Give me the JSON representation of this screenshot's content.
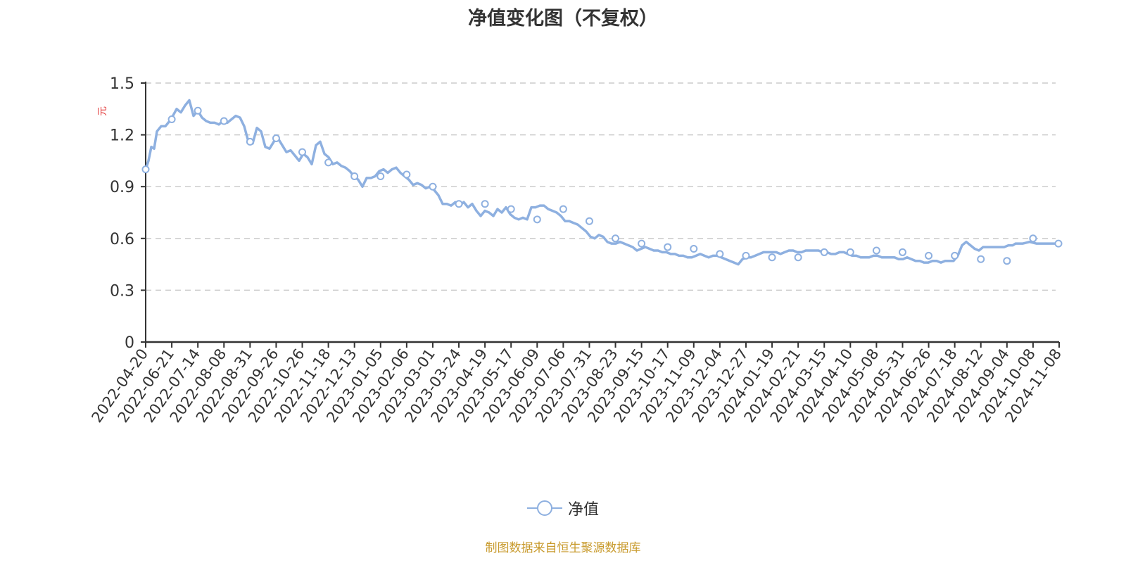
{
  "title": "净值变化图（不复权）",
  "legend": {
    "label": "净值",
    "color": "#8eb0e0"
  },
  "source": "制图数据来自恒生聚源数据库",
  "y_unit": "元",
  "chart_data": {
    "type": "line",
    "title": "净值变化图（不复权）",
    "xlabel": "",
    "ylabel": "元",
    "ylim": [
      0,
      1.5
    ],
    "yticks": [
      0,
      0.3,
      0.6,
      0.9,
      1.2,
      1.5
    ],
    "grid": true,
    "legend_position": "bottom",
    "categories": [
      "2022-04-20",
      "2022-06-21",
      "2022-07-14",
      "2022-08-08",
      "2022-08-31",
      "2022-09-26",
      "2022-10-26",
      "2022-11-18",
      "2022-12-13",
      "2023-01-05",
      "2023-02-06",
      "2023-03-01",
      "2023-03-24",
      "2023-04-19",
      "2023-05-17",
      "2023-06-09",
      "2023-07-06",
      "2023-07-31",
      "2023-08-23",
      "2023-09-15",
      "2023-10-17",
      "2023-11-09",
      "2023-12-04",
      "2023-12-27",
      "2024-01-19",
      "2024-02-21",
      "2024-03-15",
      "2024-04-10",
      "2024-05-08",
      "2024-05-31",
      "2024-06-26",
      "2024-07-18",
      "2024-08-12",
      "2024-09-04",
      "2024-10-08",
      "2024-11-08"
    ],
    "series": [
      {
        "name": "净值",
        "values": [
          1.0,
          1.29,
          1.34,
          1.28,
          1.16,
          1.18,
          1.1,
          1.04,
          0.96,
          0.96,
          0.97,
          0.9,
          0.8,
          0.8,
          0.77,
          0.71,
          0.77,
          0.7,
          0.6,
          0.57,
          0.55,
          0.54,
          0.51,
          0.5,
          0.49,
          0.49,
          0.52,
          0.52,
          0.53,
          0.52,
          0.5,
          0.5,
          0.48,
          0.47,
          0.6,
          0.57
        ]
      }
    ],
    "line_points": [
      [
        0,
        1.0
      ],
      [
        4,
        1.05
      ],
      [
        8,
        1.13
      ],
      [
        12,
        1.12
      ],
      [
        16,
        1.22
      ],
      [
        22,
        1.25
      ],
      [
        28,
        1.25
      ],
      [
        36,
        1.29
      ],
      [
        44,
        1.35
      ],
      [
        50,
        1.33
      ],
      [
        56,
        1.37
      ],
      [
        62,
        1.4
      ],
      [
        68,
        1.31
      ],
      [
        74,
        1.34
      ],
      [
        80,
        1.3
      ],
      [
        86,
        1.28
      ],
      [
        92,
        1.27
      ],
      [
        98,
        1.27
      ],
      [
        104,
        1.26
      ],
      [
        110,
        1.28
      ],
      [
        116,
        1.27
      ],
      [
        122,
        1.29
      ],
      [
        128,
        1.31
      ],
      [
        134,
        1.3
      ],
      [
        140,
        1.25
      ],
      [
        146,
        1.16
      ],
      [
        152,
        1.15
      ],
      [
        158,
        1.24
      ],
      [
        164,
        1.22
      ],
      [
        170,
        1.13
      ],
      [
        176,
        1.12
      ],
      [
        182,
        1.16
      ],
      [
        188,
        1.18
      ],
      [
        194,
        1.14
      ],
      [
        200,
        1.1
      ],
      [
        206,
        1.11
      ],
      [
        212,
        1.08
      ],
      [
        218,
        1.05
      ],
      [
        224,
        1.09
      ],
      [
        230,
        1.07
      ],
      [
        236,
        1.03
      ],
      [
        242,
        1.14
      ],
      [
        248,
        1.16
      ],
      [
        254,
        1.09
      ],
      [
        260,
        1.07
      ],
      [
        266,
        1.03
      ],
      [
        272,
        1.04
      ],
      [
        278,
        1.02
      ],
      [
        284,
        1.01
      ],
      [
        290,
        0.99
      ],
      [
        296,
        0.96
      ],
      [
        302,
        0.94
      ],
      [
        308,
        0.9
      ],
      [
        314,
        0.95
      ],
      [
        320,
        0.95
      ],
      [
        326,
        0.96
      ],
      [
        332,
        0.99
      ],
      [
        338,
        1.0
      ],
      [
        344,
        0.98
      ],
      [
        350,
        1.0
      ],
      [
        356,
        1.01
      ],
      [
        362,
        0.98
      ],
      [
        368,
        0.96
      ],
      [
        374,
        0.94
      ],
      [
        380,
        0.91
      ],
      [
        386,
        0.92
      ],
      [
        392,
        0.91
      ],
      [
        398,
        0.89
      ],
      [
        404,
        0.9
      ],
      [
        410,
        0.88
      ],
      [
        416,
        0.85
      ],
      [
        422,
        0.8
      ],
      [
        428,
        0.8
      ],
      [
        434,
        0.79
      ],
      [
        440,
        0.81
      ],
      [
        446,
        0.79
      ],
      [
        452,
        0.81
      ],
      [
        458,
        0.78
      ],
      [
        464,
        0.8
      ],
      [
        470,
        0.76
      ],
      [
        476,
        0.73
      ],
      [
        482,
        0.76
      ],
      [
        488,
        0.75
      ],
      [
        494,
        0.73
      ],
      [
        500,
        0.77
      ],
      [
        506,
        0.75
      ],
      [
        512,
        0.78
      ],
      [
        518,
        0.74
      ],
      [
        524,
        0.72
      ],
      [
        530,
        0.71
      ],
      [
        536,
        0.72
      ],
      [
        542,
        0.71
      ],
      [
        548,
        0.78
      ],
      [
        554,
        0.78
      ],
      [
        560,
        0.79
      ],
      [
        566,
        0.79
      ],
      [
        572,
        0.77
      ],
      [
        578,
        0.76
      ],
      [
        584,
        0.75
      ],
      [
        590,
        0.73
      ],
      [
        596,
        0.7
      ],
      [
        602,
        0.7
      ],
      [
        608,
        0.69
      ],
      [
        614,
        0.68
      ],
      [
        620,
        0.66
      ],
      [
        626,
        0.64
      ],
      [
        632,
        0.61
      ],
      [
        638,
        0.6
      ],
      [
        644,
        0.62
      ],
      [
        650,
        0.61
      ],
      [
        656,
        0.58
      ],
      [
        662,
        0.57
      ],
      [
        668,
        0.57
      ],
      [
        674,
        0.58
      ],
      [
        680,
        0.57
      ],
      [
        686,
        0.56
      ],
      [
        692,
        0.55
      ],
      [
        698,
        0.53
      ],
      [
        704,
        0.54
      ],
      [
        710,
        0.55
      ],
      [
        716,
        0.54
      ],
      [
        722,
        0.53
      ],
      [
        728,
        0.53
      ],
      [
        734,
        0.52
      ],
      [
        740,
        0.52
      ],
      [
        746,
        0.51
      ],
      [
        752,
        0.51
      ],
      [
        758,
        0.5
      ],
      [
        764,
        0.5
      ],
      [
        770,
        0.49
      ],
      [
        776,
        0.49
      ],
      [
        782,
        0.5
      ],
      [
        788,
        0.51
      ],
      [
        794,
        0.5
      ],
      [
        800,
        0.49
      ],
      [
        806,
        0.5
      ],
      [
        812,
        0.5
      ],
      [
        818,
        0.49
      ],
      [
        824,
        0.48
      ],
      [
        830,
        0.47
      ],
      [
        836,
        0.46
      ],
      [
        842,
        0.45
      ],
      [
        848,
        0.48
      ],
      [
        854,
        0.49
      ],
      [
        860,
        0.49
      ],
      [
        866,
        0.5
      ],
      [
        872,
        0.51
      ],
      [
        878,
        0.52
      ],
      [
        884,
        0.52
      ],
      [
        890,
        0.52
      ],
      [
        896,
        0.52
      ],
      [
        902,
        0.51
      ],
      [
        908,
        0.52
      ],
      [
        914,
        0.53
      ],
      [
        920,
        0.53
      ],
      [
        926,
        0.52
      ],
      [
        932,
        0.52
      ],
      [
        938,
        0.53
      ],
      [
        944,
        0.53
      ],
      [
        950,
        0.53
      ],
      [
        956,
        0.53
      ],
      [
        962,
        0.52
      ],
      [
        968,
        0.52
      ],
      [
        974,
        0.51
      ],
      [
        980,
        0.51
      ],
      [
        986,
        0.52
      ],
      [
        992,
        0.52
      ],
      [
        998,
        0.51
      ],
      [
        1004,
        0.5
      ],
      [
        1010,
        0.5
      ],
      [
        1016,
        0.49
      ],
      [
        1022,
        0.49
      ],
      [
        1028,
        0.49
      ],
      [
        1034,
        0.5
      ],
      [
        1040,
        0.5
      ],
      [
        1046,
        0.49
      ],
      [
        1052,
        0.49
      ],
      [
        1058,
        0.49
      ],
      [
        1064,
        0.49
      ],
      [
        1070,
        0.48
      ],
      [
        1076,
        0.48
      ],
      [
        1082,
        0.49
      ],
      [
        1088,
        0.48
      ],
      [
        1094,
        0.47
      ],
      [
        1100,
        0.47
      ],
      [
        1106,
        0.46
      ],
      [
        1112,
        0.46
      ],
      [
        1118,
        0.47
      ],
      [
        1124,
        0.47
      ],
      [
        1130,
        0.46
      ],
      [
        1136,
        0.47
      ],
      [
        1142,
        0.47
      ],
      [
        1148,
        0.47
      ],
      [
        1154,
        0.5
      ],
      [
        1160,
        0.56
      ],
      [
        1166,
        0.58
      ],
      [
        1172,
        0.56
      ],
      [
        1178,
        0.54
      ],
      [
        1184,
        0.53
      ],
      [
        1190,
        0.55
      ],
      [
        1196,
        0.55
      ],
      [
        1202,
        0.55
      ],
      [
        1208,
        0.55
      ],
      [
        1214,
        0.55
      ],
      [
        1220,
        0.55
      ],
      [
        1226,
        0.56
      ],
      [
        1232,
        0.56
      ],
      [
        1236,
        0.57
      ],
      [
        1246,
        0.57
      ],
      [
        1256,
        0.58
      ],
      [
        1266,
        0.57
      ],
      [
        1276,
        0.57
      ],
      [
        1286,
        0.57
      ],
      [
        1296,
        0.57
      ],
      [
        1298,
        0.57
      ]
    ]
  }
}
